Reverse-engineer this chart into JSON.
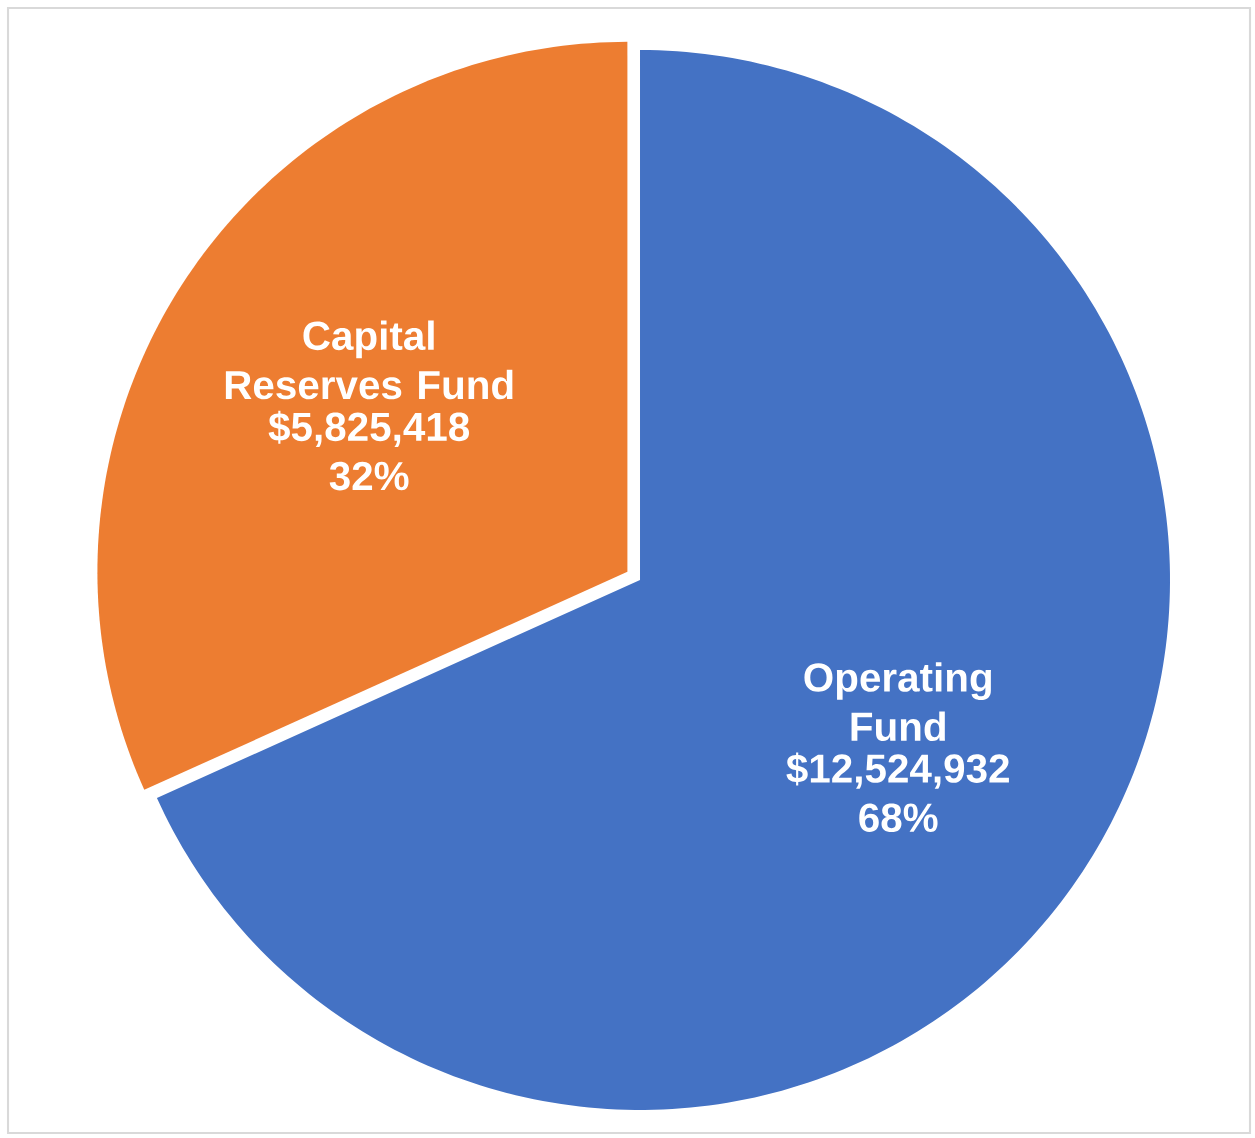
{
  "chart_data": {
    "type": "pie",
    "categories": [
      "Operating Fund",
      "Capital Reserves Fund"
    ],
    "values": [
      12524932,
      5825418
    ],
    "colors": [
      "#4472c4",
      "#ed7d31"
    ],
    "value_labels": [
      "$12,524,932 68%",
      "$5,825,418 32%"
    ]
  }
}
